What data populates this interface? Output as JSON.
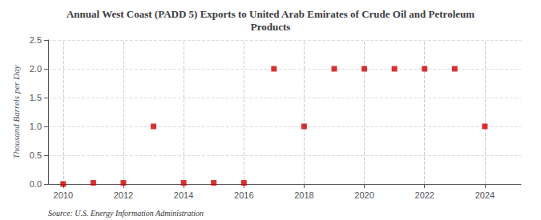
{
  "chart_data": {
    "type": "scatter",
    "title": "Annual West Coast (PADD 5) Exports to United Arab Emirates of Crude Oil and Petroleum\nProducts",
    "ylabel": "Thousand Barrels per Day",
    "source": "Source: U.S. Energy Information Administration",
    "x": [
      2010,
      2011,
      2012,
      2013,
      2014,
      2015,
      2016,
      2017,
      2018,
      2019,
      2020,
      2021,
      2022,
      2023,
      2024
    ],
    "values": [
      0.0,
      0.02,
      0.02,
      1.0,
      0.02,
      0.02,
      0.02,
      2.0,
      1.0,
      2.0,
      2.0,
      2.0,
      2.0,
      2.0,
      1.0
    ],
    "color": "#cc0000",
    "marker": "square",
    "xlim": [
      2009.5,
      2025.2
    ],
    "xticks": [
      2010,
      2012,
      2014,
      2016,
      2018,
      2020,
      2022,
      2024
    ],
    "ylim": [
      0.0,
      2.5
    ],
    "yticks": [
      {
        "value": 0.0,
        "label": "0.0"
      },
      0.5,
      {
        "value": 1.0,
        "label": "1.0"
      },
      1.5,
      {
        "value": 2.0,
        "label": "2.0"
      },
      2.5
    ],
    "grid": true
  }
}
